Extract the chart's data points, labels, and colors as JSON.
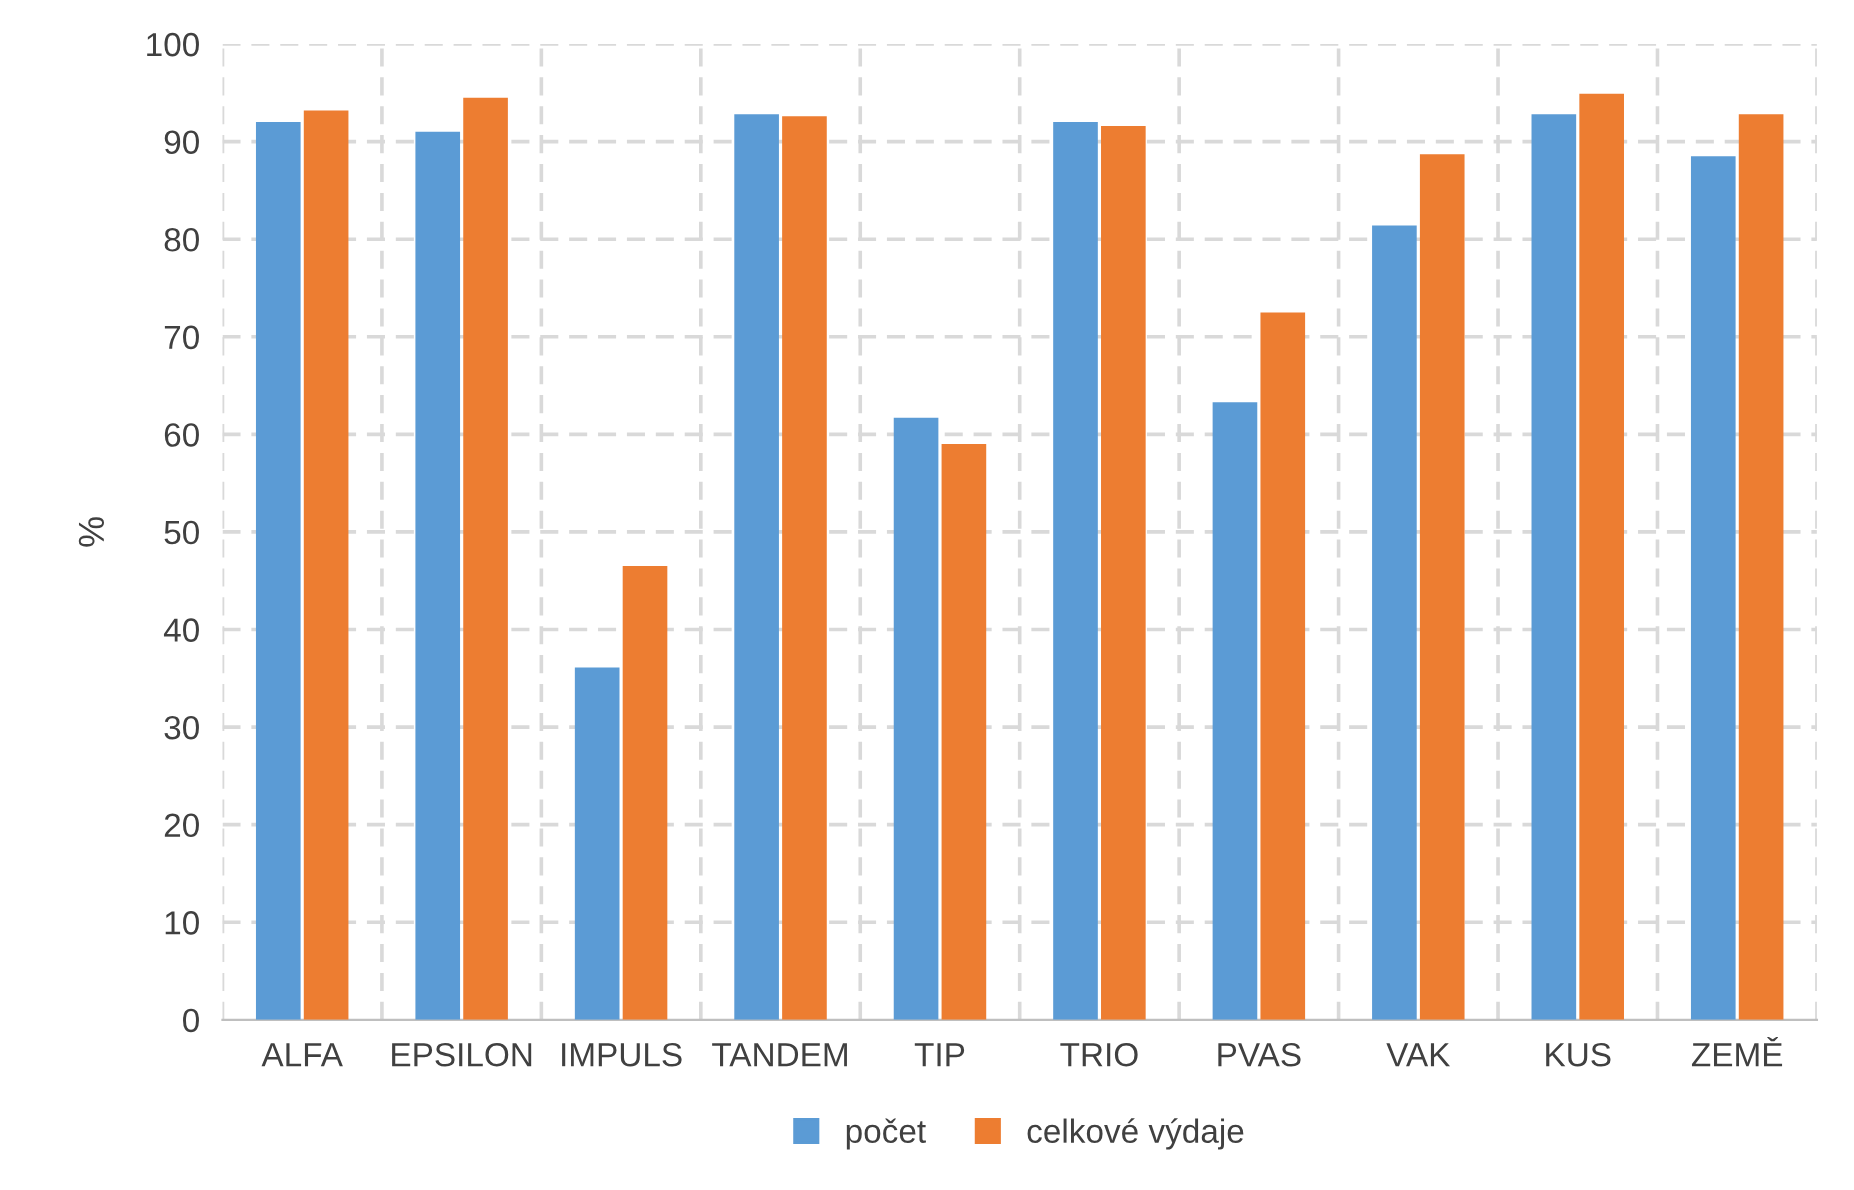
{
  "chart_data": {
    "type": "bar",
    "ylabel": "%",
    "categories": [
      "ALFA",
      "EPSILON",
      "IMPULS",
      "TANDEM",
      "TIP",
      "TRIO",
      "PVAS",
      "VAK",
      "KUS",
      "ZEMĚ"
    ],
    "series": [
      {
        "name": "počet",
        "color": "#5b9bd5",
        "values": [
          92.0,
          91.0,
          36.1,
          92.8,
          61.7,
          92.0,
          63.3,
          81.4,
          92.8,
          88.5
        ]
      },
      {
        "name": "celkové výdaje",
        "color": "#ed7d31",
        "values": [
          93.2,
          94.5,
          46.5,
          92.6,
          59.0,
          91.6,
          72.5,
          88.7,
          94.9,
          92.8
        ]
      }
    ],
    "ylim": [
      0,
      100
    ],
    "yticks": [
      0,
      10,
      20,
      30,
      40,
      50,
      60,
      70,
      80,
      90,
      100
    ],
    "grid": true,
    "legend": "bottom"
  }
}
